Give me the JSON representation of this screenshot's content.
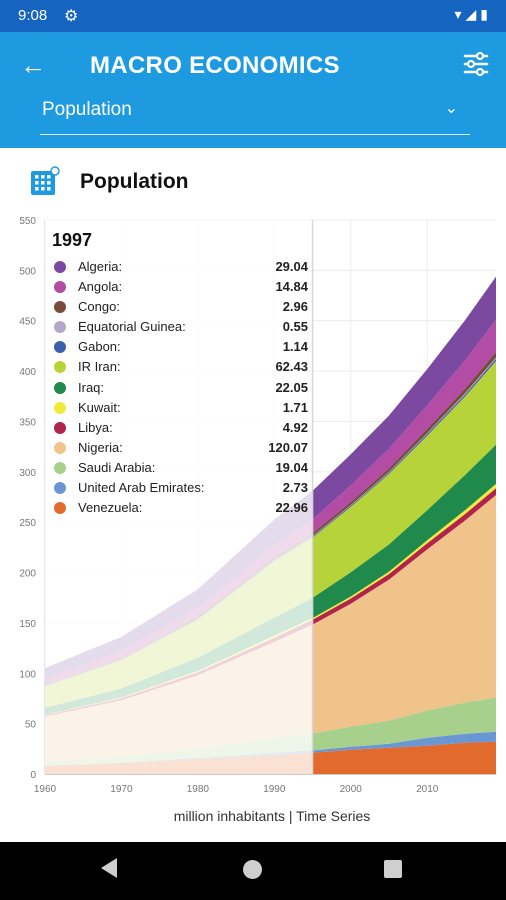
{
  "status_bar": {
    "time": "9:08"
  },
  "app_bar": {
    "title": "MACRO ECONOMICS",
    "selected_metric": "Population"
  },
  "section": {
    "title": "Population"
  },
  "caption": "million inhabitants | Time Series",
  "legend": {
    "year": "1997",
    "items": [
      {
        "name": "Algeria:",
        "value": "29.04",
        "color": "#7b4aa0"
      },
      {
        "name": "Angola:",
        "value": "14.84",
        "color": "#b34ca5"
      },
      {
        "name": "Congo:",
        "value": "2.96",
        "color": "#7a4a3a"
      },
      {
        "name": "Equatorial Guinea:",
        "value": "0.55",
        "color": "#b3a8cc"
      },
      {
        "name": "Gabon:",
        "value": "1.14",
        "color": "#3b5faa"
      },
      {
        "name": "IR Iran:",
        "value": "62.43",
        "color": "#b7d33a"
      },
      {
        "name": "Iraq:",
        "value": "22.05",
        "color": "#1f8a4c"
      },
      {
        "name": "Kuwait:",
        "value": "1.71",
        "color": "#f2ea3a"
      },
      {
        "name": "Libya:",
        "value": "4.92",
        "color": "#b0244e"
      },
      {
        "name": "Nigeria:",
        "value": "120.07",
        "color": "#f0c38a"
      },
      {
        "name": "Saudi Arabia:",
        "value": "19.04",
        "color": "#a6d08c"
      },
      {
        "name": "United Arab Emirates:",
        "value": "2.73",
        "color": "#6a96d4"
      },
      {
        "name": "Venezuela:",
        "value": "22.96",
        "color": "#e26a2c"
      }
    ]
  },
  "chart_data": {
    "type": "area",
    "stacked": true,
    "title": "Population",
    "xlabel": "million inhabitants | Time Series",
    "ylabel": "",
    "ylim": [
      0,
      550
    ],
    "xlim": [
      1960,
      2019
    ],
    "y_ticks": [
      0,
      50,
      100,
      150,
      200,
      250,
      300,
      350,
      400,
      450,
      500,
      550
    ],
    "x_ticks": [
      1960,
      1970,
      1980,
      1990,
      2000,
      2010
    ],
    "highlight_from_year": 1995,
    "grid": true,
    "x": [
      1960,
      1970,
      1980,
      1990,
      1995,
      2000,
      2005,
      2010,
      2015,
      2019
    ],
    "series": [
      {
        "name": "Venezuela",
        "color": "#e26a2c",
        "values": [
          8,
          11,
          15,
          19,
          21,
          24,
          26,
          28,
          31,
          32
        ]
      },
      {
        "name": "United Arab Emirates",
        "color": "#6a96d4",
        "values": [
          0.1,
          0.2,
          1,
          2,
          2.3,
          3,
          4,
          8,
          9,
          10
        ]
      },
      {
        "name": "Saudi Arabia",
        "color": "#a6d08c",
        "values": [
          4,
          6,
          9,
          15,
          17,
          20,
          23,
          27,
          31,
          34
        ]
      },
      {
        "name": "Nigeria",
        "color": "#f0c38a",
        "values": [
          45,
          56,
          73,
          95,
          108,
          122,
          140,
          160,
          181,
          201
        ]
      },
      {
        "name": "Libya",
        "color": "#b0244e",
        "values": [
          1.4,
          2,
          3,
          4.3,
          4.8,
          5.2,
          5.6,
          6,
          6.3,
          6.8
        ]
      },
      {
        "name": "Kuwait",
        "color": "#f2ea3a",
        "values": [
          0.3,
          0.7,
          1.4,
          2,
          1.7,
          2,
          2.3,
          3,
          3.9,
          4.2
        ]
      },
      {
        "name": "Iraq",
        "color": "#1f8a4c",
        "values": [
          7,
          9,
          13,
          18,
          20,
          24,
          27,
          30,
          35,
          39
        ]
      },
      {
        "name": "IR Iran",
        "color": "#b7d33a",
        "values": [
          21,
          28,
          38,
          56,
          60,
          65,
          70,
          74,
          78,
          83
        ]
      },
      {
        "name": "Gabon",
        "color": "#3b5faa",
        "values": [
          0.5,
          0.6,
          0.7,
          1,
          1.1,
          1.2,
          1.4,
          1.6,
          1.9,
          2.2
        ]
      },
      {
        "name": "Equatorial Guinea",
        "color": "#b3a8cc",
        "values": [
          0.3,
          0.3,
          0.2,
          0.4,
          0.5,
          0.6,
          0.7,
          0.9,
          1.2,
          1.4
        ]
      },
      {
        "name": "Congo",
        "color": "#7a4a3a",
        "values": [
          1,
          1.3,
          1.8,
          2.4,
          2.7,
          3.1,
          3.5,
          4.1,
          4.8,
          5.4
        ]
      },
      {
        "name": "Angola",
        "color": "#b34ca5",
        "values": [
          5.5,
          7,
          8.3,
          11.8,
          13.5,
          16.4,
          19.4,
          23.4,
          27.9,
          31.8
        ]
      },
      {
        "name": "Algeria",
        "color": "#7b4aa0",
        "values": [
          11,
          14,
          19,
          25.8,
          28.5,
          31,
          33,
          36,
          40,
          43
        ]
      }
    ]
  }
}
